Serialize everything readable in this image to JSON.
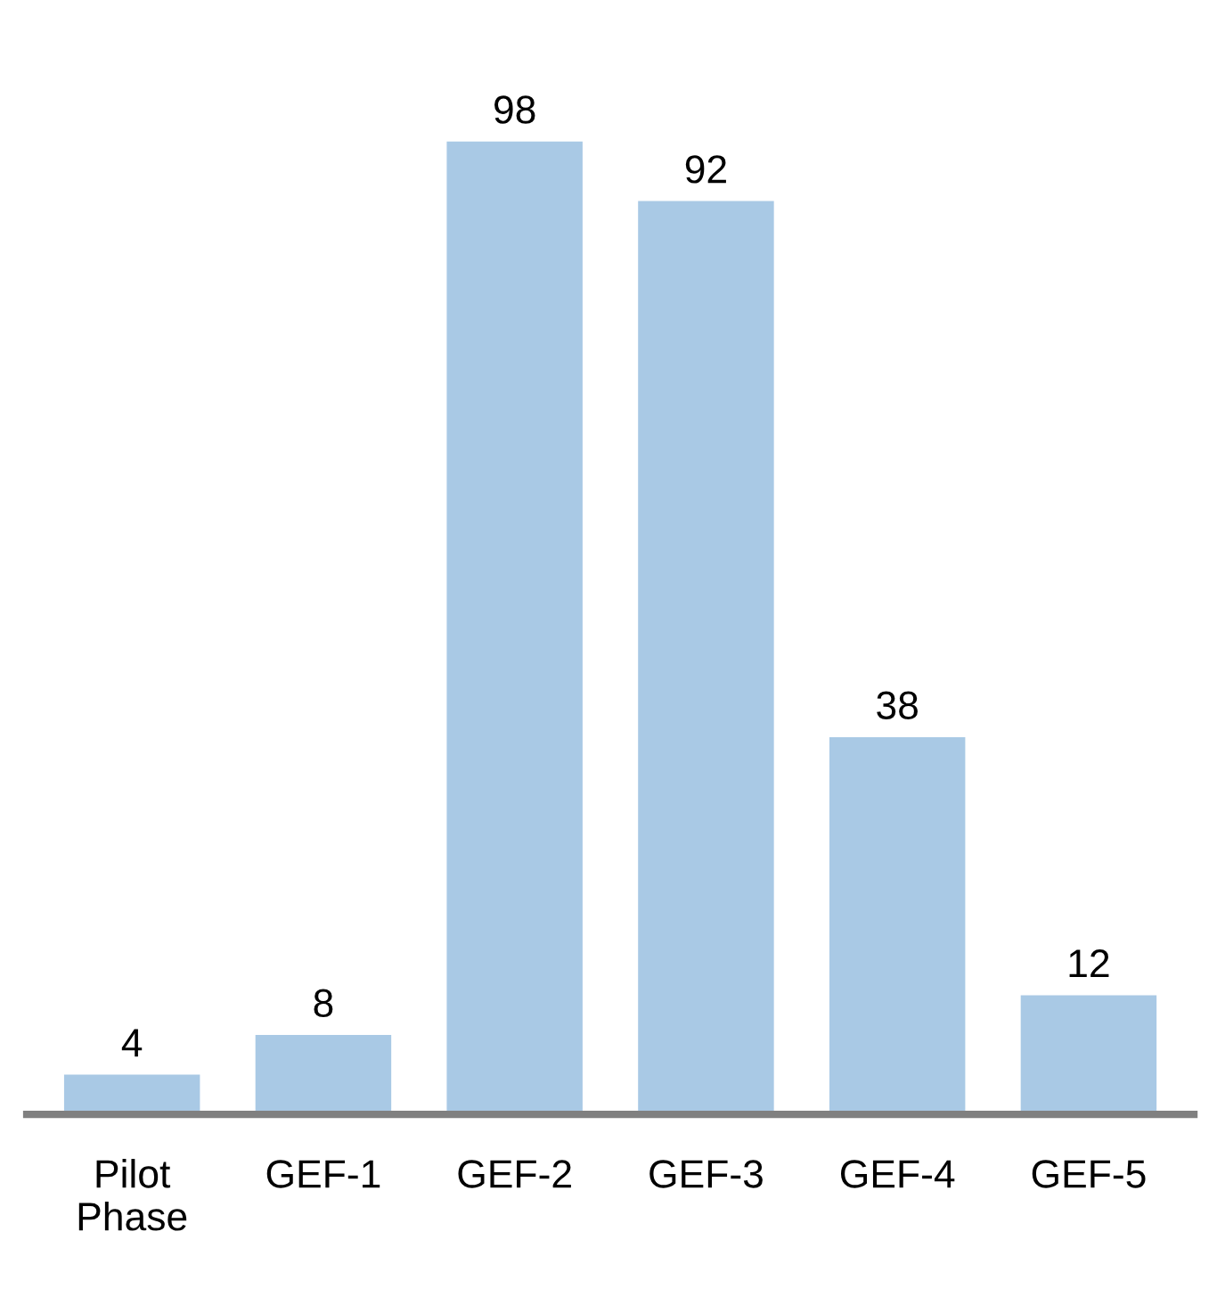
{
  "chart_data": {
    "type": "bar",
    "categories": [
      "Pilot\nPhase",
      "GEF-1",
      "GEF-2",
      "GEF-3",
      "GEF-4",
      "GEF-5"
    ],
    "values": [
      4,
      8,
      98,
      92,
      38,
      12
    ],
    "color": "#a9c9e5",
    "data_labels": true,
    "grid": false,
    "legend": false
  }
}
